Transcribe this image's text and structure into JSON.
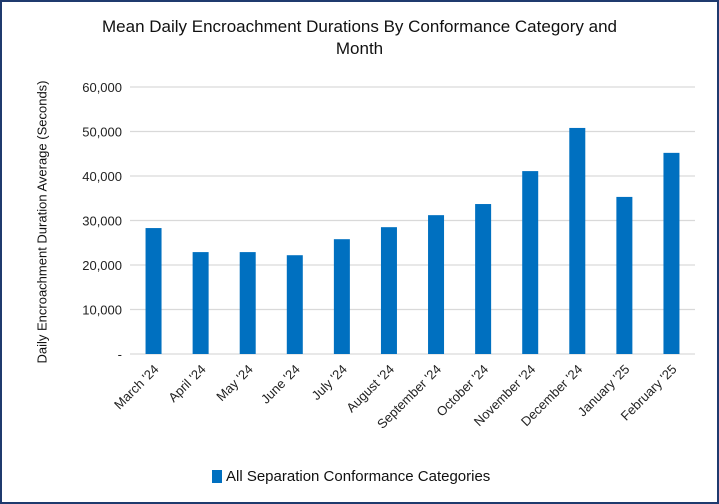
{
  "chart_data": {
    "type": "bar",
    "title": "Mean Daily Encroachment Durations By Conformance Category and Month",
    "title_lines": [
      "Mean Daily Encroachment Durations By Conformance Category and",
      "Month"
    ],
    "xlabel": "",
    "ylabel": "Daily Encroachment Duration Average (Seconds)",
    "ylim": [
      0,
      60000
    ],
    "yticks": [
      0,
      10000,
      20000,
      30000,
      40000,
      50000,
      60000
    ],
    "ytick_labels": [
      "-",
      "10,000",
      "20,000",
      "30,000",
      "40,000",
      "50,000",
      "60,000"
    ],
    "grid": true,
    "legend_position": "bottom",
    "categories": [
      "March '24",
      "April '24",
      "May '24",
      "June '24",
      "July '24",
      "August '24",
      "September '24",
      "October '24",
      "November '24",
      "December '24",
      "January '25",
      "February '25"
    ],
    "series": [
      {
        "name": "All Separation Conformance Categories",
        "color": "#0070c0",
        "values": [
          28300,
          22900,
          22900,
          22200,
          25800,
          28500,
          31200,
          33700,
          41100,
          50800,
          35300,
          45200
        ]
      }
    ]
  }
}
